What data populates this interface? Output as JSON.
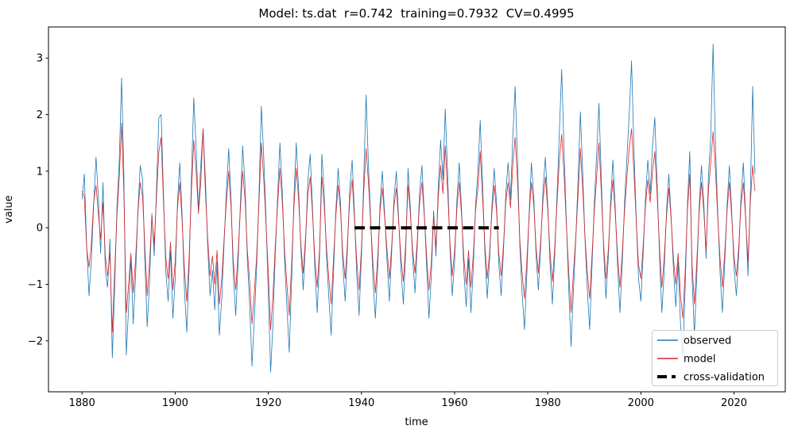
{
  "chart_data": {
    "type": "line",
    "title": "Model: ts.dat  r=0.742  training=0.7932  CV=0.4995",
    "xlabel": "time",
    "ylabel": "value",
    "xlim": [
      1872.8,
      2031.0
    ],
    "ylim": [
      -2.9,
      3.55
    ],
    "xticks": [
      1880,
      1900,
      1920,
      1940,
      1960,
      1980,
      2000,
      2020
    ],
    "yticks": [
      -2,
      -1,
      0,
      1,
      2,
      3
    ],
    "grid": false,
    "legend_position": "lower right",
    "x_start": 1880,
    "x_step": 0.5,
    "series": [
      {
        "name": "observed",
        "color": "#1f77b4",
        "linewidth": 0.8,
        "style": "solid",
        "values": [
          0.5,
          0.95,
          -0.3,
          -1.2,
          -0.6,
          0.4,
          1.25,
          0.55,
          -0.45,
          0.8,
          -0.75,
          -1.05,
          -0.2,
          -2.3,
          -1.1,
          0.35,
          1.2,
          2.65,
          0.9,
          -2.25,
          -1.4,
          -0.55,
          -1.7,
          -0.85,
          0.3,
          1.1,
          0.85,
          -0.6,
          -1.75,
          -0.95,
          0.25,
          -0.5,
          0.7,
          1.95,
          2.0,
          0.6,
          -0.8,
          -1.3,
          -0.4,
          -1.6,
          -0.9,
          0.45,
          1.15,
          0.2,
          -1.1,
          -1.85,
          -0.7,
          0.9,
          2.3,
          1.4,
          0.3,
          1.1,
          1.75,
          0.85,
          -0.35,
          -1.2,
          -0.75,
          -1.45,
          -0.6,
          -1.9,
          -1.25,
          -0.3,
          0.65,
          1.4,
          0.5,
          -0.85,
          -1.55,
          -0.65,
          0.4,
          1.45,
          0.75,
          -0.55,
          -1.35,
          -2.45,
          -1.6,
          -0.7,
          0.6,
          2.15,
          1.3,
          0.2,
          -1.15,
          -2.55,
          -1.7,
          -0.45,
          0.55,
          1.5,
          0.65,
          -0.6,
          -1.4,
          -2.2,
          -0.95,
          0.5,
          1.5,
          0.7,
          -0.4,
          -1.1,
          -0.25,
          0.85,
          1.3,
          0.35,
          -0.75,
          -1.5,
          -0.55,
          1.3,
          0.6,
          -0.5,
          -1.25,
          -1.9,
          -0.8,
          0.3,
          1.05,
          0.45,
          -0.65,
          -1.3,
          -0.35,
          0.7,
          1.2,
          0.25,
          -0.85,
          -1.55,
          -0.5,
          0.9,
          2.35,
          1.1,
          0.1,
          -0.95,
          -1.6,
          -0.7,
          0.45,
          1.0,
          0.2,
          -0.6,
          -1.3,
          -0.4,
          0.55,
          1.0,
          0.15,
          -0.75,
          -1.35,
          -0.45,
          1.05,
          0.35,
          -0.55,
          -1.15,
          -0.3,
          0.65,
          1.1,
          0.25,
          -0.7,
          -1.6,
          -0.85,
          0.3,
          -0.5,
          0.75,
          1.55,
          0.85,
          2.1,
          0.95,
          -0.35,
          -1.2,
          -0.6,
          0.5,
          1.15,
          0.3,
          -0.8,
          -1.4,
          -0.55,
          -1.5,
          -0.75,
          0.4,
          1.0,
          1.9,
          0.8,
          -0.45,
          -1.25,
          -0.6,
          0.35,
          1.05,
          0.45,
          -0.65,
          -1.2,
          -0.4,
          0.6,
          1.15,
          0.5,
          1.6,
          2.5,
          1.2,
          -0.3,
          -1.15,
          -1.8,
          -0.85,
          0.25,
          1.15,
          0.55,
          -0.5,
          -1.1,
          -0.3,
          0.7,
          1.25,
          0.4,
          -0.65,
          -1.35,
          -0.5,
          0.6,
          1.7,
          2.8,
          1.35,
          0.1,
          -1.05,
          -2.1,
          -1.15,
          -0.25,
          0.8,
          2.05,
          1.0,
          -0.2,
          -1.1,
          -1.8,
          -0.7,
          0.45,
          1.3,
          2.2,
          0.9,
          -0.4,
          -1.25,
          -0.55,
          0.5,
          1.2,
          0.35,
          -0.7,
          -1.5,
          -0.65,
          0.45,
          1.25,
          2.0,
          2.95,
          1.4,
          0.15,
          -0.9,
          -1.3,
          -0.45,
          0.55,
          1.2,
          0.6,
          1.45,
          1.95,
          0.75,
          -0.5,
          -1.5,
          -0.8,
          0.3,
          0.95,
          0.2,
          -0.75,
          -1.4,
          -0.6,
          -1.7,
          -2.3,
          -1.1,
          0.4,
          1.35,
          -0.9,
          -1.9,
          -0.85,
          0.35,
          1.1,
          0.45,
          -0.55,
          0.9,
          1.6,
          3.25,
          1.5,
          0.3,
          -0.8,
          -1.5,
          -0.65,
          0.4,
          1.1,
          0.3,
          -0.7,
          -1.2,
          -0.5,
          0.55,
          1.15,
          0.2,
          -0.85,
          0.6,
          2.5,
          0.95
        ]
      },
      {
        "name": "model",
        "color": "#d62728",
        "linewidth": 0.8,
        "style": "solid",
        "values": [
          0.65,
          0.55,
          -0.35,
          -0.7,
          -0.3,
          0.45,
          0.75,
          0.25,
          -0.2,
          0.45,
          -0.5,
          -0.85,
          -0.45,
          -1.85,
          -0.8,
          0.2,
          0.9,
          1.85,
          0.6,
          -1.5,
          -1.0,
          -0.45,
          -1.15,
          -0.55,
          0.25,
          0.8,
          0.55,
          -0.35,
          -1.2,
          -0.6,
          0.2,
          -0.3,
          0.55,
          1.35,
          1.6,
          0.45,
          -0.55,
          -0.9,
          -0.25,
          -1.1,
          -0.6,
          0.35,
          0.8,
          0.1,
          -0.75,
          -1.3,
          -0.5,
          0.65,
          1.55,
          1.0,
          0.25,
          0.8,
          1.75,
          0.6,
          -0.2,
          -0.85,
          -0.5,
          -1.0,
          -0.4,
          -1.35,
          -0.9,
          -0.2,
          0.45,
          1.0,
          0.35,
          -0.6,
          -1.1,
          -0.45,
          0.3,
          1.0,
          0.5,
          -0.4,
          -0.95,
          -1.7,
          -1.15,
          -0.5,
          0.45,
          1.5,
          0.9,
          0.1,
          -0.8,
          -1.8,
          -1.2,
          -0.3,
          0.4,
          1.05,
          0.45,
          -0.4,
          -1.0,
          -1.55,
          -0.65,
          0.35,
          1.05,
          0.5,
          -0.3,
          -0.8,
          -0.15,
          0.6,
          0.9,
          0.25,
          -0.55,
          -1.05,
          -0.4,
          0.9,
          0.4,
          -0.35,
          -0.9,
          -1.35,
          -0.55,
          0.2,
          0.75,
          0.3,
          -0.45,
          -0.9,
          -0.25,
          0.5,
          0.85,
          0.15,
          -0.6,
          -1.1,
          -0.35,
          0.65,
          1.4,
          0.8,
          0.05,
          -0.65,
          -1.15,
          -0.5,
          0.3,
          0.7,
          0.15,
          -0.4,
          -0.9,
          -0.3,
          0.4,
          0.7,
          0.1,
          -0.55,
          -0.95,
          -0.3,
          0.75,
          0.25,
          -0.4,
          -0.8,
          -0.2,
          0.45,
          0.8,
          0.2,
          -0.5,
          -1.1,
          -0.6,
          0.2,
          -0.35,
          0.55,
          1.1,
          0.6,
          1.45,
          0.65,
          -0.25,
          -0.85,
          -0.4,
          0.35,
          0.8,
          0.2,
          -0.55,
          -1.0,
          -0.4,
          -1.05,
          -0.5,
          0.3,
          0.7,
          1.35,
          0.55,
          -0.3,
          -0.9,
          -0.45,
          0.25,
          0.75,
          0.3,
          -0.45,
          -0.85,
          -0.3,
          0.45,
          0.8,
          0.35,
          1.1,
          1.6,
          0.85,
          -0.2,
          -0.8,
          -1.25,
          -0.6,
          0.2,
          0.8,
          0.4,
          -0.35,
          -0.8,
          -0.2,
          0.5,
          0.9,
          0.3,
          -0.45,
          -0.95,
          -0.35,
          0.45,
          1.2,
          1.65,
          0.95,
          0.05,
          -0.75,
          -1.5,
          -0.8,
          -0.2,
          0.55,
          1.4,
          0.7,
          -0.15,
          -0.8,
          -1.25,
          -0.5,
          0.3,
          0.9,
          1.5,
          0.65,
          -0.3,
          -0.9,
          -0.4,
          0.35,
          0.85,
          0.25,
          -0.5,
          -1.05,
          -0.45,
          0.3,
          0.9,
          1.4,
          1.75,
          1.0,
          0.1,
          -0.65,
          -0.9,
          -0.3,
          0.4,
          0.85,
          0.45,
          1.0,
          1.35,
          0.55,
          -0.35,
          -1.05,
          -0.55,
          0.2,
          0.7,
          0.15,
          -0.55,
          -1.0,
          -0.45,
          -1.2,
          -1.6,
          -0.8,
          0.3,
          0.95,
          -0.65,
          -1.35,
          -0.6,
          0.25,
          0.8,
          0.3,
          -0.4,
          0.65,
          1.15,
          1.7,
          1.05,
          0.2,
          -0.55,
          -1.05,
          -0.45,
          0.3,
          0.8,
          0.2,
          -0.5,
          -0.85,
          -0.35,
          0.4,
          0.8,
          0.15,
          -0.6,
          0.45,
          1.1,
          0.65
        ]
      },
      {
        "name": "cross-validation",
        "color": "#000000",
        "linewidth": 4,
        "style": "dashed",
        "x": [
          1938.5,
          1969.5
        ],
        "y": [
          0,
          0
        ]
      }
    ]
  }
}
